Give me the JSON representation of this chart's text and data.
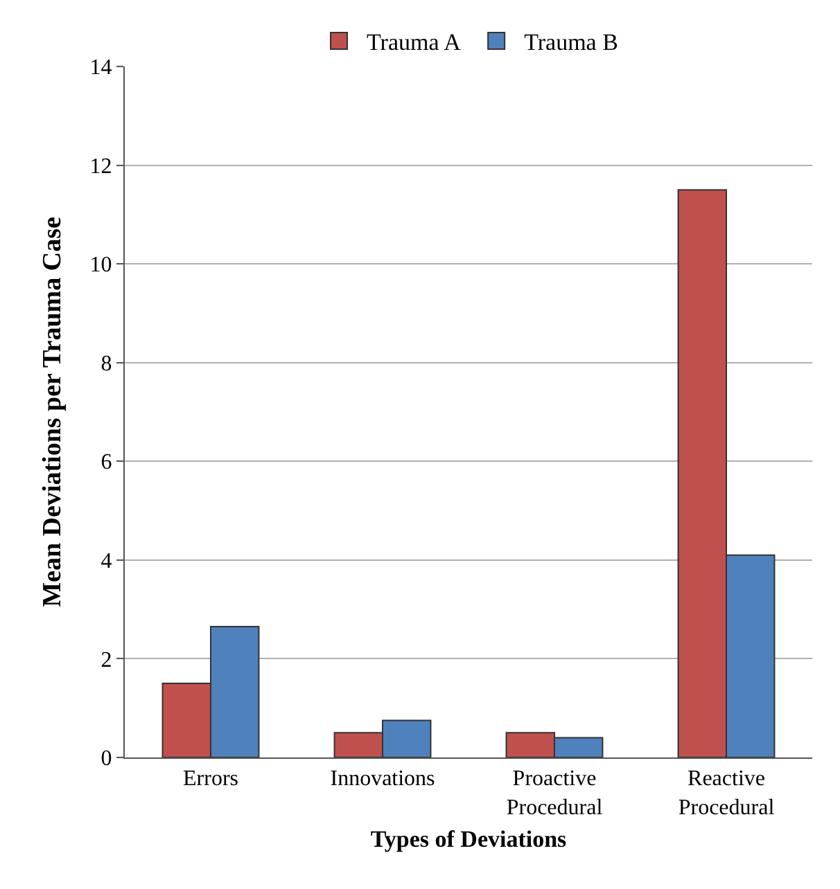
{
  "chart_data": {
    "type": "bar",
    "xlabel": "Types of Deviations",
    "ylabel": "Mean Deviations per Trauma Case",
    "categories": [
      "Errors",
      "Innovations",
      "Proactive Procedural",
      "Reactive Procedural"
    ],
    "series": [
      {
        "name": "Trauma A",
        "color": "#c0504d",
        "values": [
          1.5,
          0.5,
          0.5,
          11.5
        ]
      },
      {
        "name": "Trauma B",
        "color": "#4f81bd",
        "values": [
          2.65,
          0.75,
          0.4,
          4.1
        ]
      }
    ],
    "ylim": [
      0,
      14
    ],
    "yticks": [
      0,
      2,
      4,
      6,
      8,
      10,
      12,
      14
    ],
    "grid": "y",
    "legend": "top"
  }
}
